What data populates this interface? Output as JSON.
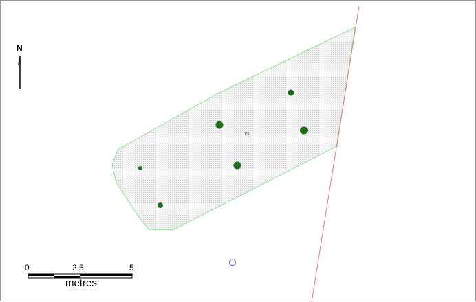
{
  "map": {
    "north_label": "N",
    "feature_label": "K9",
    "scale": {
      "ticks": [
        "0",
        "2,5",
        "5"
      ],
      "unit": "metres"
    }
  },
  "colors": {
    "polygon_outline": "#90e090",
    "polygon_fill": "#f2f2f2",
    "point_fill": "#1f6b1f",
    "boundary_line": "#d98080",
    "marker_outline": "#5a5ad8"
  },
  "icons": {
    "north_arrow": "north-arrow-icon",
    "open_circle": "circle-marker-icon"
  }
}
